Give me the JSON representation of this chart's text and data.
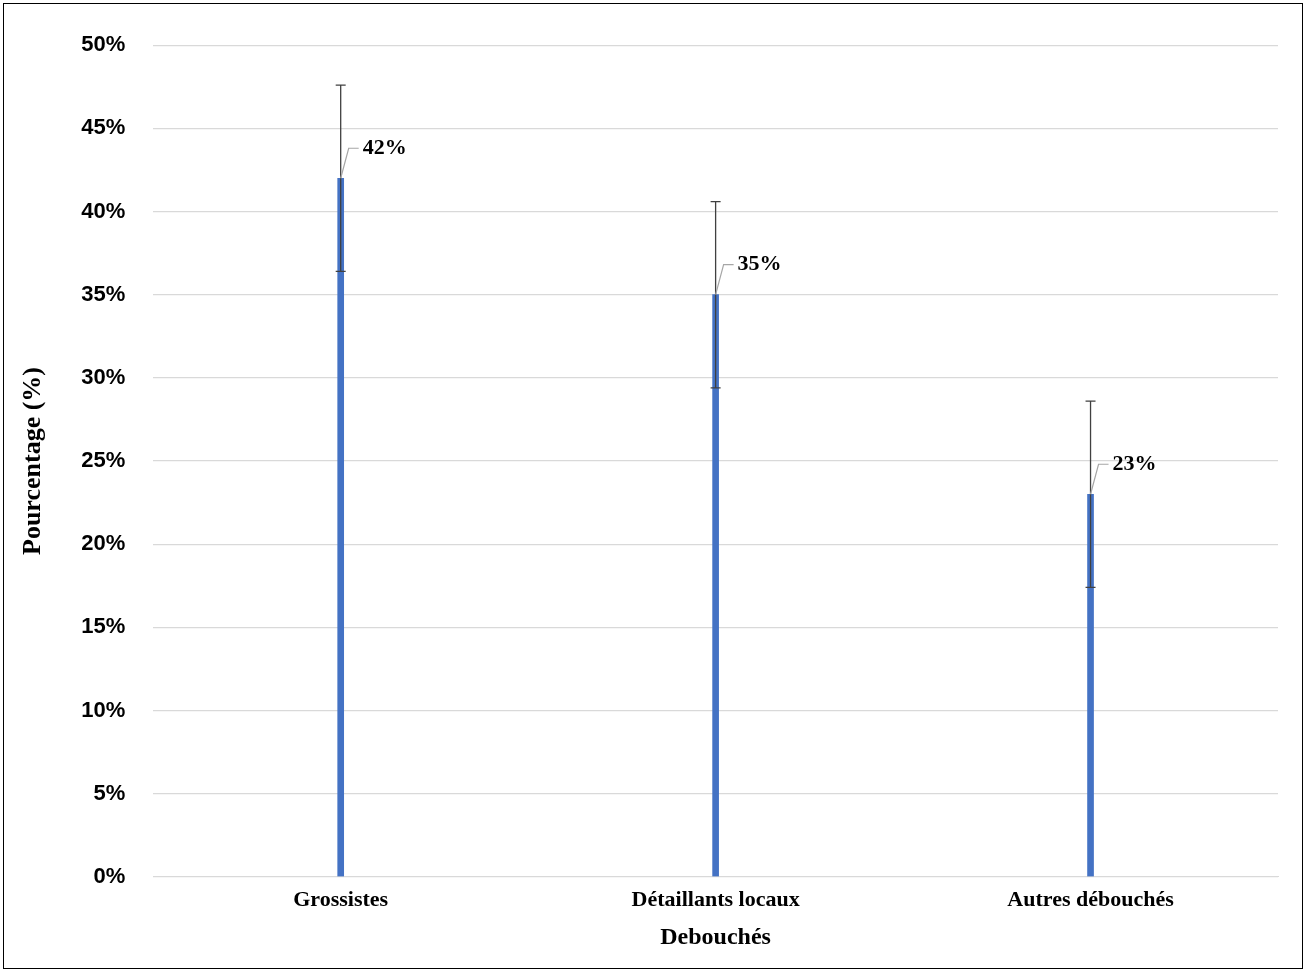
{
  "chart_data": {
    "type": "bar",
    "xlabel": "Debouchés",
    "ylabel": "Pourcentage (%)",
    "categories": [
      "Grossistes",
      "Détaillants locaux",
      "Autres débouchés"
    ],
    "values": [
      42,
      35,
      23
    ],
    "color": "#4472c4",
    "errors": [
      5.6,
      5.6,
      5.6
    ],
    "value_labels": [
      "42%",
      "35%",
      "23%"
    ],
    "ylim": [
      0,
      50
    ],
    "yticks": [
      {
        "value": 0,
        "label": "0%"
      },
      {
        "value": 5,
        "label": "5%"
      },
      {
        "value": 10,
        "label": "10%"
      },
      {
        "value": 15,
        "label": "15%"
      },
      {
        "value": 20,
        "label": "20%"
      },
      {
        "value": 25,
        "label": "25%"
      },
      {
        "value": 30,
        "label": "30%"
      },
      {
        "value": 35,
        "label": "35%"
      },
      {
        "value": 40,
        "label": "40%"
      },
      {
        "value": 45,
        "label": "45%"
      },
      {
        "value": 50,
        "label": "50%"
      }
    ],
    "grid": "y"
  }
}
